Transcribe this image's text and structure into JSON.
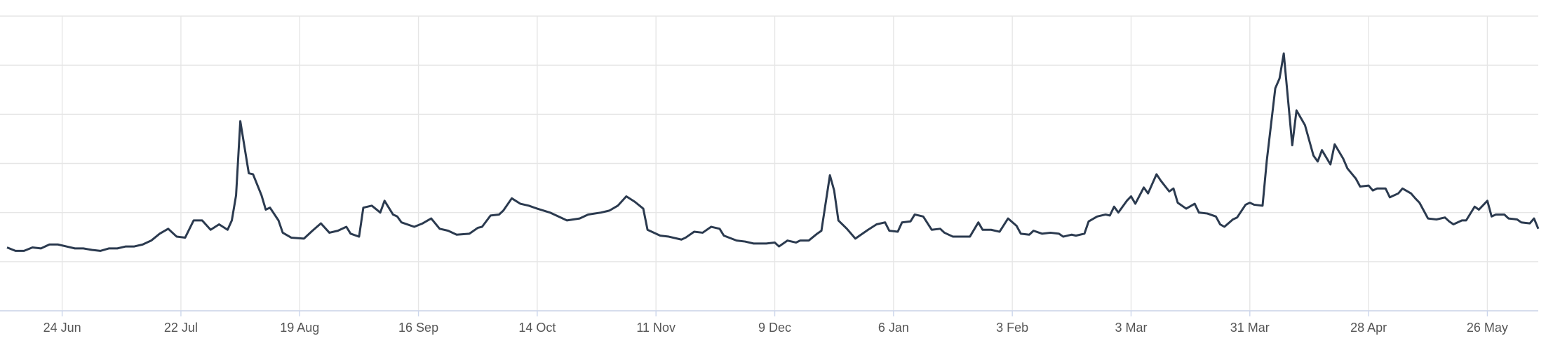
{
  "chart_data": {
    "type": "line",
    "color": "#2b3a4f",
    "grid": true,
    "xlim": [
      0,
      361
    ],
    "ylim": [
      0,
      6
    ],
    "yticks": [
      0,
      1,
      2,
      3,
      4,
      5,
      6
    ],
    "xticks": [
      {
        "value": 13,
        "label": "24 Jun"
      },
      {
        "value": 41,
        "label": "22 Jul"
      },
      {
        "value": 69,
        "label": "19 Aug"
      },
      {
        "value": 97,
        "label": "16 Sep"
      },
      {
        "value": 125,
        "label": "14 Oct"
      },
      {
        "value": 153,
        "label": "11 Nov"
      },
      {
        "value": 181,
        "label": "9 Dec"
      },
      {
        "value": 209,
        "label": "6 Jan"
      },
      {
        "value": 237,
        "label": "3 Feb"
      },
      {
        "value": 265,
        "label": "3 Mar"
      },
      {
        "value": 293,
        "label": "31 Mar"
      },
      {
        "value": 321,
        "label": "28 Apr"
      },
      {
        "value": 349,
        "label": "26 May"
      }
    ],
    "x": [
      0,
      2,
      4,
      6,
      8,
      10,
      12,
      14,
      16,
      18,
      20,
      22,
      24,
      26,
      28,
      30,
      32,
      34,
      36,
      38,
      40,
      42,
      44,
      46,
      48,
      50,
      52,
      53,
      54,
      55,
      57,
      58,
      60,
      61,
      62,
      64,
      65,
      67,
      70,
      72,
      74,
      76,
      78,
      80,
      81,
      83,
      84,
      86,
      88,
      89,
      91,
      92,
      93,
      96,
      98,
      100,
      102,
      104,
      106,
      109,
      111,
      112,
      114,
      116,
      117,
      119,
      121,
      123,
      125,
      128,
      130,
      132,
      135,
      137,
      140,
      142,
      144,
      146,
      148,
      150,
      151,
      154,
      156,
      159,
      160,
      162,
      164,
      166,
      168,
      169,
      172,
      174,
      176,
      179,
      181,
      182,
      184,
      186,
      187,
      189,
      191,
      192,
      194,
      195,
      196,
      198,
      200,
      201,
      203,
      205,
      207,
      208,
      210,
      211,
      213,
      214,
      216,
      218,
      220,
      221,
      223,
      225,
      227,
      229,
      230,
      232,
      234,
      236,
      238,
      239,
      241,
      242,
      244,
      246,
      248,
      249,
      251,
      252,
      254,
      255,
      257,
      259,
      260,
      261,
      262,
      264,
      265,
      266,
      268,
      269,
      271,
      272,
      274,
      275,
      276,
      278,
      280,
      281,
      283,
      285,
      286,
      287,
      289,
      290,
      292,
      293,
      294,
      296,
      297,
      299,
      300,
      301,
      303,
      304,
      306,
      308,
      309,
      310,
      312,
      313,
      315,
      316,
      318,
      319,
      321,
      322,
      323,
      325,
      326,
      328,
      329,
      331,
      332,
      333,
      335,
      337,
      339,
      340,
      341,
      343,
      344,
      346,
      347,
      349,
      350,
      351,
      353,
      354,
      356,
      357,
      359,
      360,
      361
    ],
    "values": [
      1.29,
      1.22,
      1.22,
      1.29,
      1.27,
      1.35,
      1.35,
      1.31,
      1.27,
      1.27,
      1.24,
      1.22,
      1.27,
      1.27,
      1.31,
      1.31,
      1.35,
      1.43,
      1.57,
      1.67,
      1.51,
      1.49,
      1.84,
      1.84,
      1.65,
      1.76,
      1.65,
      1.84,
      2.35,
      3.86,
      2.8,
      2.78,
      2.35,
      2.06,
      2.1,
      1.84,
      1.59,
      1.49,
      1.47,
      1.63,
      1.78,
      1.59,
      1.63,
      1.71,
      1.57,
      1.51,
      2.1,
      2.14,
      2.0,
      2.24,
      1.96,
      1.92,
      1.8,
      1.71,
      1.78,
      1.88,
      1.67,
      1.63,
      1.55,
      1.57,
      1.69,
      1.71,
      1.94,
      1.96,
      2.04,
      2.29,
      2.18,
      2.14,
      2.08,
      2.0,
      1.92,
      1.84,
      1.88,
      1.96,
      2.0,
      2.04,
      2.14,
      2.33,
      2.22,
      2.08,
      1.65,
      1.53,
      1.51,
      1.45,
      1.49,
      1.61,
      1.59,
      1.71,
      1.67,
      1.53,
      1.43,
      1.41,
      1.37,
      1.37,
      1.39,
      1.31,
      1.43,
      1.39,
      1.43,
      1.43,
      1.57,
      1.63,
      2.76,
      2.45,
      1.84,
      1.67,
      1.47,
      1.53,
      1.65,
      1.76,
      1.8,
      1.63,
      1.61,
      1.8,
      1.82,
      1.96,
      1.92,
      1.65,
      1.67,
      1.59,
      1.51,
      1.51,
      1.51,
      1.8,
      1.65,
      1.65,
      1.61,
      1.88,
      1.73,
      1.57,
      1.55,
      1.63,
      1.57,
      1.59,
      1.57,
      1.51,
      1.55,
      1.53,
      1.57,
      1.82,
      1.92,
      1.96,
      1.94,
      2.12,
      2.0,
      2.24,
      2.33,
      2.18,
      2.51,
      2.39,
      2.78,
      2.65,
      2.43,
      2.49,
      2.2,
      2.08,
      2.18,
      2.0,
      1.98,
      1.92,
      1.76,
      1.71,
      1.86,
      1.9,
      2.16,
      2.2,
      2.16,
      2.14,
      3.06,
      4.53,
      4.73,
      5.24,
      3.37,
      4.08,
      3.78,
      3.16,
      3.04,
      3.27,
      2.98,
      3.39,
      3.1,
      2.9,
      2.69,
      2.53,
      2.55,
      2.45,
      2.49,
      2.49,
      2.31,
      2.39,
      2.49,
      2.39,
      2.29,
      2.2,
      1.88,
      1.86,
      1.9,
      1.82,
      1.76,
      1.84,
      1.84,
      2.12,
      2.06,
      2.24,
      1.92,
      1.96,
      1.96,
      1.88,
      1.86,
      1.8,
      1.78,
      1.88,
      1.67
    ]
  }
}
